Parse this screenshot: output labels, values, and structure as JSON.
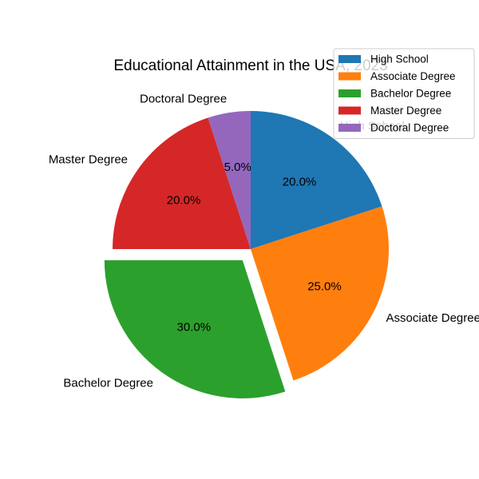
{
  "chart_data": {
    "type": "pie",
    "title": "Educational Attainment in the USA, 2023",
    "categories": [
      "High School",
      "Associate Degree",
      "Bachelor Degree",
      "Master Degree",
      "Doctoral Degree"
    ],
    "values": [
      20,
      25,
      30,
      20,
      5
    ],
    "percent_labels": [
      "20.0%",
      "25.0%",
      "30.0%",
      "20.0%",
      "5.0%"
    ],
    "colors": [
      "#1f77b4",
      "#ff7f0e",
      "#2ca02c",
      "#d62728",
      "#9467bd"
    ],
    "exploded": [
      false,
      false,
      true,
      false,
      false
    ],
    "start_angle_deg": 90,
    "direction": "clockwise",
    "legend": {
      "placement": "upper-right",
      "entries": [
        "High School",
        "Associate Degree",
        "Bachelor Degree",
        "Master Degree",
        "Doctoral Degree"
      ]
    }
  }
}
